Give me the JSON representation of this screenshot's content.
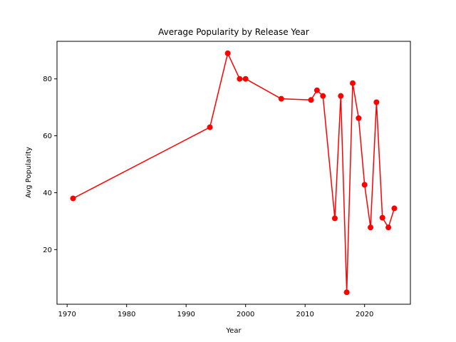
{
  "chart_data": {
    "type": "line",
    "title": "Average Popularity by Release Year",
    "xlabel": "Year",
    "ylabel": "Avg Popularity",
    "xlim": [
      1968.3,
      2027.7
    ],
    "ylim": [
      0.8,
      93.2
    ],
    "x_ticks": [
      1970,
      1980,
      1990,
      2000,
      2010,
      2020
    ],
    "y_ticks": [
      20,
      40,
      60,
      80
    ],
    "grid": false,
    "series": [
      {
        "color": "#ff0000",
        "marker": "circle",
        "x": [
          1971,
          1994,
          1997,
          1999,
          2000,
          2006,
          2011,
          2012,
          2013,
          2015,
          2016,
          2017,
          2018,
          2019,
          2020,
          2021,
          2022,
          2023,
          2024,
          2025
        ],
        "y": [
          38,
          63,
          89,
          80,
          80,
          73,
          72.6,
          76,
          74,
          31,
          74,
          5,
          78.5,
          66.2,
          42.8,
          27.8,
          71.8,
          31.2,
          27.8,
          34.5
        ]
      }
    ]
  }
}
